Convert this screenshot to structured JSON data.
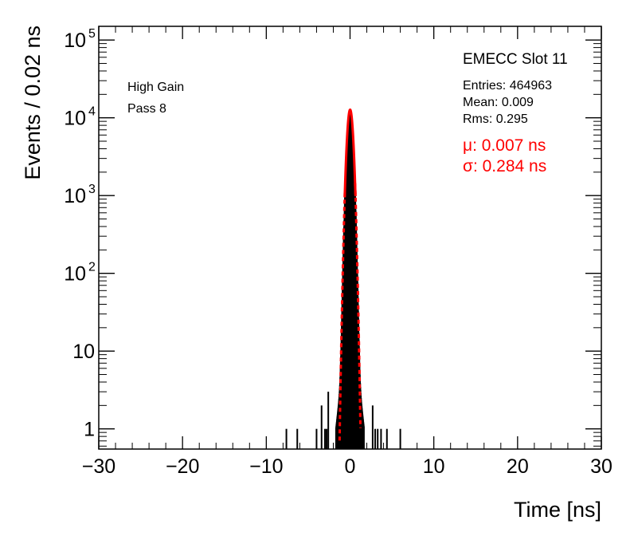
{
  "chart_data": {
    "type": "histogram",
    "xlabel": "Time [ns]",
    "ylabel": "Events / 0.02 ns",
    "xlim": [
      -30,
      30
    ],
    "ylim": [
      0.55,
      150000
    ],
    "y_scale": "log",
    "x_ticks": [
      -30,
      -20,
      -10,
      0,
      10,
      20,
      30
    ],
    "x_tick_labels": [
      "−30",
      "−20",
      "−10",
      "0",
      "10",
      "20",
      "30"
    ],
    "y_ticks": [
      {
        "value": 1,
        "base": "1",
        "exp": ""
      },
      {
        "value": 10,
        "base": "10",
        "exp": ""
      },
      {
        "value": 100,
        "base": "10",
        "exp": "2"
      },
      {
        "value": 1000,
        "base": "10",
        "exp": "3"
      },
      {
        "value": 10000,
        "base": "10",
        "exp": "4"
      },
      {
        "value": 100000,
        "base": "10",
        "exp": "5"
      }
    ],
    "annotations": {
      "gain": "High Gain",
      "pass": "Pass 8",
      "title": "EMECC Slot 11",
      "entries": "Entries: 464963",
      "mean": "Mean: 0.009",
      "rms": "Rms: 0.295",
      "mu": "μ: 0.007 ns",
      "sigma": "σ: 0.284 ns"
    },
    "histogram": {
      "color": "#000000",
      "entries": 464963,
      "mean": 0.009,
      "rms": 0.295,
      "tail_bins": [
        -7.6,
        -6.3,
        -4.0,
        -3.4,
        -3.0,
        -2.8,
        -2.6,
        2.7,
        3.0,
        3.3,
        3.7,
        4.4,
        6.0
      ]
    },
    "fit": {
      "color": "#ff0000",
      "mu": 0.007,
      "sigma": 0.284,
      "peak": 12700
    }
  }
}
